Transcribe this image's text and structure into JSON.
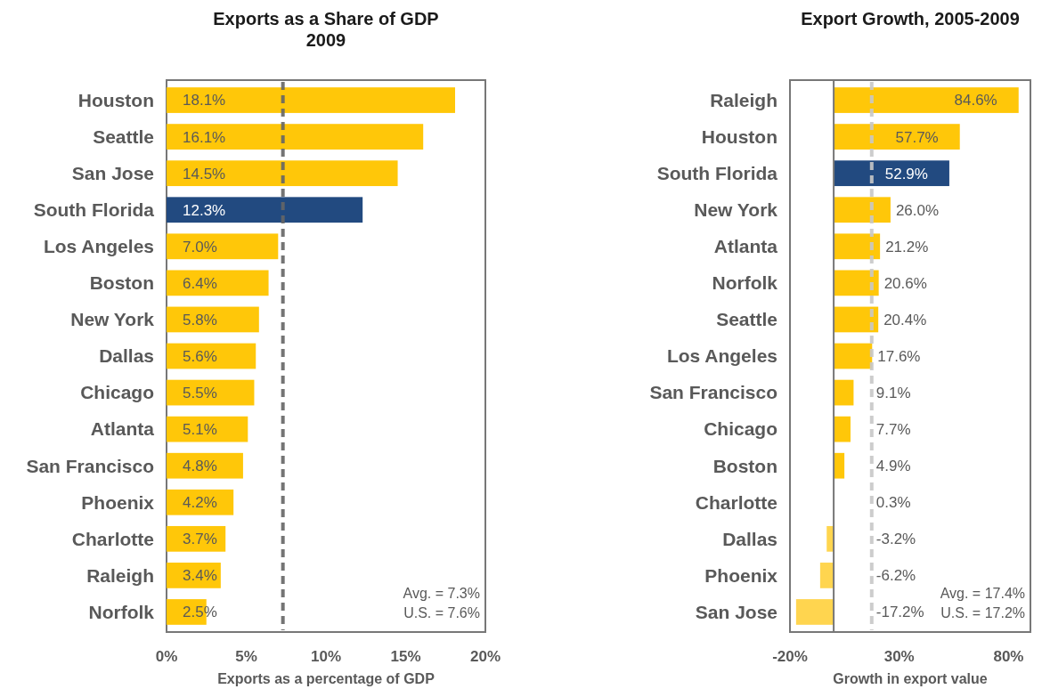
{
  "chart_data": [
    {
      "type": "bar",
      "orientation": "horizontal",
      "title": "Exports as a Share of GDP\n2009",
      "xlabel": "Exports as a percentage of GDP",
      "categories": [
        "Houston",
        "Seattle",
        "San Jose",
        "South Florida",
        "Los Angeles",
        "Boston",
        "New York",
        "Dallas",
        "Chicago",
        "Atlanta",
        "San Francisco",
        "Phoenix",
        "Charlotte",
        "Raleigh",
        "Norfolk"
      ],
      "values": [
        18.1,
        16.1,
        14.5,
        12.3,
        7.0,
        6.4,
        5.8,
        5.6,
        5.5,
        5.1,
        4.8,
        4.2,
        3.7,
        3.4,
        2.5
      ],
      "value_labels": [
        "18.1%",
        "16.1%",
        "14.5%",
        "12.3%",
        "7.0%",
        "6.4%",
        "5.8%",
        "5.6%",
        "5.5%",
        "5.1%",
        "4.8%",
        "4.2%",
        "3.7%",
        "3.4%",
        "2.5%"
      ],
      "colors": [
        "#ffc709",
        "#ffc709",
        "#ffc709",
        "#224a80",
        "#ffc709",
        "#ffc709",
        "#ffc709",
        "#ffc709",
        "#ffc709",
        "#ffc709",
        "#ffc709",
        "#ffc709",
        "#ffc709",
        "#ffc709",
        "#ffc709"
      ],
      "xlim": [
        0,
        20
      ],
      "xticks": [
        {
          "value": 0,
          "label": "0%"
        },
        {
          "value": 5,
          "label": "5%"
        },
        {
          "value": 10,
          "label": "10%"
        },
        {
          "value": 15,
          "label": "15%"
        },
        {
          "value": 20,
          "label": "20%"
        }
      ],
      "ref_lines": [
        {
          "axis": "x",
          "value": 7.3,
          "color": "#666666",
          "line_style": "dashed"
        }
      ],
      "annotations": [
        "Avg. = 7.3%",
        "U.S. = 7.6%"
      ]
    },
    {
      "type": "bar",
      "orientation": "horizontal",
      "title": "Export Growth, 2005-2009",
      "xlabel": "Growth in export value",
      "categories": [
        "Raleigh",
        "Houston",
        "South Florida",
        "New York",
        "Atlanta",
        "Norfolk",
        "Seattle",
        "Los Angeles",
        "San Francisco",
        "Chicago",
        "Boston",
        "Charlotte",
        "Dallas",
        "Phoenix",
        "San Jose"
      ],
      "values": [
        84.6,
        57.7,
        52.9,
        26.0,
        21.2,
        20.6,
        20.4,
        17.6,
        9.1,
        7.7,
        4.9,
        0.3,
        -3.2,
        -6.2,
        -17.2
      ],
      "value_labels": [
        "84.6%",
        "57.7%",
        "52.9%",
        "26.0%",
        "21.2%",
        "20.6%",
        "20.4%",
        "17.6%",
        "9.1%",
        "7.7%",
        "4.9%",
        "0.3%",
        "-3.2%",
        "-6.2%",
        "-17.2%"
      ],
      "colors": [
        "#ffc709",
        "#ffc709",
        "#224a80",
        "#ffc709",
        "#ffc709",
        "#ffc709",
        "#ffc709",
        "#ffc709",
        "#ffc709",
        "#ffc709",
        "#ffc709",
        "#ffc709",
        "#ffd54f",
        "#ffd54f",
        "#ffd54f"
      ],
      "xlim": [
        -20,
        90
      ],
      "xticks": [
        {
          "value": -20,
          "label": "-20%"
        },
        {
          "value": 30,
          "label": "30%"
        },
        {
          "value": 80,
          "label": "80%"
        }
      ],
      "ref_lines": [
        {
          "axis": "x",
          "value": 17.4,
          "color": "#c8c8c8",
          "line_style": "dashed"
        }
      ],
      "annotations": [
        "Avg. = 17.4%",
        "U.S. = 17.2%"
      ]
    }
  ]
}
